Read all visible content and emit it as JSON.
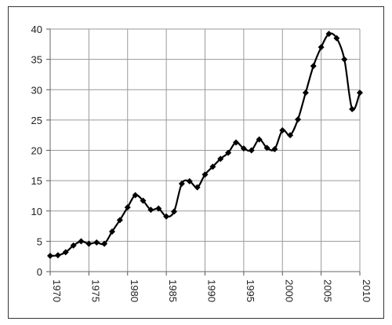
{
  "chart_data": {
    "type": "line",
    "title": "",
    "xlabel": "",
    "ylabel": "",
    "xlim": [
      1970,
      2010
    ],
    "ylim": [
      0,
      40
    ],
    "x_ticks": [
      1970,
      1975,
      1980,
      1985,
      1990,
      1995,
      2000,
      2005,
      2010
    ],
    "x_tick_labels": [
      "1970",
      "1975",
      "1980",
      "1985",
      "1990",
      "1995",
      "2000",
      "2005",
      "2010"
    ],
    "y_ticks": [
      0,
      5,
      10,
      15,
      20,
      25,
      30,
      35,
      40
    ],
    "y_tick_labels": [
      "0",
      "5",
      "10",
      "15",
      "20",
      "25",
      "30",
      "35",
      "40"
    ],
    "grid": true,
    "legend": "none",
    "marker": "diamond",
    "line_color": "#000000",
    "series": [
      {
        "x": [
          1970,
          1971,
          1972,
          1973,
          1974,
          1975,
          1976,
          1977,
          1978,
          1979,
          1980,
          1981,
          1982,
          1983,
          1984,
          1985,
          1986,
          1987,
          1988,
          1989,
          1990,
          1991,
          1992,
          1993,
          1994,
          1995,
          1996,
          1997,
          1998,
          1999,
          2000,
          2001,
          2002,
          2003,
          2004,
          2005,
          2006,
          2007,
          2008,
          2009,
          2010
        ],
        "values": [
          2.6,
          2.7,
          3.2,
          4.3,
          5.0,
          4.6,
          4.8,
          4.6,
          6.6,
          8.5,
          10.6,
          12.6,
          11.7,
          10.2,
          10.4,
          9.1,
          9.9,
          14.5,
          14.9,
          13.9,
          16.0,
          17.3,
          18.6,
          19.6,
          21.3,
          20.3,
          20.0,
          21.8,
          20.4,
          20.2,
          23.3,
          22.5,
          25.1,
          29.5,
          33.9,
          37.0,
          39.2,
          38.5,
          35.0,
          26.8,
          29.5
        ]
      }
    ]
  }
}
